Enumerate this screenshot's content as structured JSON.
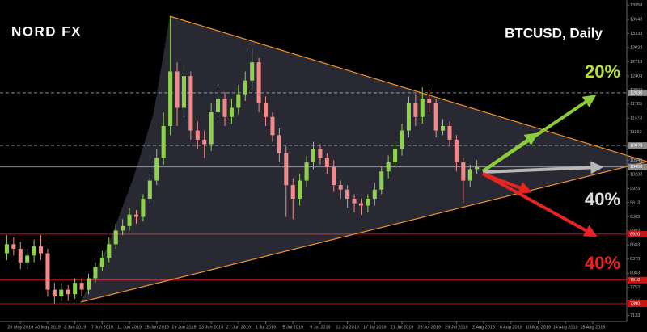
{
  "chart_data": {
    "type": "candlestick",
    "logo": "NORD FX",
    "title": "BTCUSD, Daily",
    "annotations": [
      {
        "text": "20%",
        "color": "#b5e035"
      },
      {
        "text": "40%",
        "color": "#dcdcdc"
      },
      {
        "text": "40%",
        "color": "#ee2020"
      }
    ],
    "up_color": "#8fd14f",
    "down_color": "#f08a8a",
    "x": [
      "24 May 2019",
      "25 May 2019",
      "26 May 2019",
      "27 May 2019",
      "28 May 2019",
      "29 May 2019",
      "30 May 2019",
      "31 May 2019",
      "1 Jun 2019",
      "2 Jun 2019",
      "3 Jun 2019",
      "4 Jun 2019",
      "5 Jun 2019",
      "6 Jun 2019",
      "7 Jun 2019",
      "8 Jun 2019",
      "9 Jun 2019",
      "10 Jun 2019",
      "11 Jun 2019",
      "12 Jun 2019",
      "13 Jun 2019",
      "14 Jun 2019",
      "15 Jun 2019",
      "16 Jun 2019",
      "17 Jun 2019",
      "18 Jun 2019",
      "19 Jun 2019",
      "20 Jun 2019",
      "21 Jun 2019",
      "22 Jun 2019",
      "23 Jun 2019",
      "24 Jun 2019",
      "25 Jun 2019",
      "26 Jun 2019",
      "27 Jun 2019",
      "28 Jun 2019",
      "29 Jun 2019",
      "30 Jun 2019",
      "1 Jul 2019",
      "2 Jul 2019",
      "3 Jul 2019",
      "4 Jul 2019",
      "5 Jul 2019",
      "6 Jul 2019",
      "7 Jul 2019",
      "8 Jul 2019",
      "9 Jul 2019",
      "10 Jul 2019",
      "11 Jul 2019",
      "12 Jul 2019",
      "13 Jul 2019",
      "14 Jul 2019",
      "15 Jul 2019",
      "16 Jul 2019",
      "17 Jul 2019",
      "18 Jul 2019",
      "19 Jul 2019",
      "20 Jul 2019",
      "21 Jul 2019",
      "22 Jul 2019",
      "23 Jul 2019",
      "24 Jul 2019",
      "25 Jul 2019",
      "26 Jul 2019",
      "27 Jul 2019",
      "28 Jul 2019",
      "29 Jul 2019",
      "30 Jul 2019",
      "31 Jul 2019",
      "1 Aug 2019"
    ],
    "open": [
      8500,
      8700,
      8600,
      8300,
      8450,
      8650,
      8500,
      7700,
      7550,
      7700,
      7600,
      7850,
      7700,
      7950,
      8200,
      8400,
      8700,
      9000,
      9100,
      9350,
      9300,
      9700,
      10100,
      10600,
      11300,
      12500,
      11700,
      12400,
      11200,
      11000,
      10900,
      11600,
      11900,
      11500,
      11700,
      12000,
      12300,
      12700,
      11800,
      11500,
      11100,
      10700,
      10000,
      9700,
      10100,
      10500,
      10800,
      10600,
      10400,
      10000,
      9900,
      9700,
      9600,
      9550,
      9700,
      9900,
      10300,
      10500,
      10800,
      11200,
      11800,
      11500,
      11900,
      11800,
      11200,
      11300,
      11000,
      10500,
      10100,
      10350
    ],
    "high": [
      8900,
      8850,
      8750,
      8600,
      8800,
      8900,
      8600,
      7850,
      7850,
      7800,
      7950,
      7950,
      8050,
      8300,
      8550,
      8850,
      9150,
      9250,
      9500,
      9450,
      9800,
      10250,
      10800,
      11600,
      13711,
      12700,
      12650,
      12500,
      11400,
      11200,
      11800,
      12100,
      12050,
      11900,
      12200,
      12500,
      13000,
      12800,
      11950,
      11600,
      11250,
      10850,
      10150,
      10250,
      10650,
      10950,
      10900,
      10700,
      10550,
      10100,
      10000,
      9800,
      9700,
      9800,
      10050,
      10400,
      10650,
      10950,
      11350,
      11950,
      12000,
      12150,
      12100,
      11900,
      11450,
      11400,
      11100,
      10600,
      10450,
      10550
    ],
    "low": [
      8350,
      8450,
      8150,
      8150,
      8300,
      8350,
      7550,
      7400,
      7450,
      7450,
      7500,
      7550,
      7600,
      7850,
      8100,
      8300,
      8600,
      8900,
      9000,
      9150,
      9200,
      9600,
      10000,
      10450,
      11100,
      11300,
      11500,
      11000,
      10800,
      10600,
      10750,
      11400,
      11300,
      11350,
      11550,
      11850,
      12100,
      11600,
      11300,
      10950,
      10500,
      9300,
      9250,
      9550,
      9950,
      10350,
      10450,
      10250,
      9850,
      9700,
      9500,
      9400,
      9350,
      9400,
      9550,
      9800,
      10150,
      10400,
      10650,
      11050,
      11300,
      11350,
      11600,
      11050,
      11100,
      10850,
      10300,
      9600,
      9950,
      10250
    ],
    "close": [
      8700,
      8600,
      8300,
      8450,
      8650,
      8500,
      7700,
      7550,
      7700,
      7600,
      7850,
      7700,
      7950,
      8200,
      8400,
      8700,
      9000,
      9100,
      9350,
      9300,
      9700,
      10100,
      10600,
      11300,
      12500,
      11700,
      12400,
      11200,
      11000,
      10900,
      11600,
      11900,
      11500,
      11700,
      12000,
      12300,
      12700,
      11800,
      11500,
      11100,
      10700,
      10000,
      9700,
      10100,
      10500,
      10800,
      10600,
      10400,
      10000,
      9900,
      9700,
      9600,
      9550,
      9700,
      9900,
      10300,
      10500,
      10800,
      11200,
      11800,
      11500,
      11900,
      11800,
      11200,
      11300,
      11000,
      10500,
      10100,
      10350,
      10400
    ],
    "xlim": [
      "23 May 2019",
      "23 Aug 2019"
    ],
    "xticks": [
      "26 May 2019",
      "30 May 2019",
      "3 Jun 2019",
      "7 Jun 2019",
      "11 Jun 2019",
      "15 Jun 2019",
      "19 Jun 2019",
      "23 Jun 2019",
      "27 Jun 2019",
      "1 Jul 2019",
      "5 Jul 2019",
      "9 Jul 2019",
      "13 Jul 2019",
      "17 Jul 2019",
      "21 Jul 2019",
      "25 Jul 2019",
      "29 Jul 2019",
      "2 Aug 2019",
      "6 Aug 2019",
      "10 Aug 2019",
      "14 Aug 2019",
      "18 Aug 2019"
    ],
    "ylim": [
      7000,
      14000
    ],
    "yticks": [
      13958,
      13643,
      13333,
      13023,
      12713,
      12403,
      12093,
      11783,
      11473,
      11163,
      10853,
      10543,
      10233,
      9923,
      9613,
      9303,
      8993,
      8683,
      8373,
      8063,
      7753,
      7443,
      7133
    ],
    "levels": [
      {
        "value": 12030,
        "style": "dashed",
        "color": "#8a8a8a"
      },
      {
        "value": 10870,
        "style": "dashed",
        "color": "#8a8a8a"
      },
      {
        "value": 10400,
        "style": "solid",
        "color": "#8a8a8a"
      },
      {
        "value": 8920,
        "style": "solid",
        "color": "#c81414"
      },
      {
        "value": 7910,
        "style": "solid",
        "color": "#c81414"
      },
      {
        "value": 7390,
        "style": "solid",
        "color": "#c81414"
      }
    ]
  }
}
